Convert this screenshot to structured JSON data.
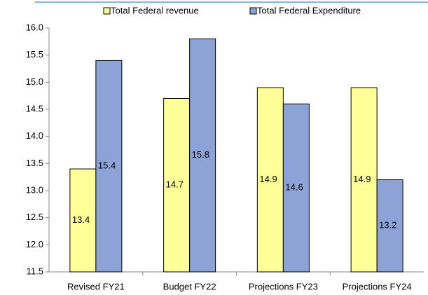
{
  "chart_data": {
    "type": "bar",
    "categories": [
      "Revised FY21",
      "Budget FY22",
      "Projections FY23",
      "Projections FY24"
    ],
    "series": [
      {
        "name": "Total Federal revenue",
        "color": "#ffff99",
        "values": [
          13.4,
          14.7,
          14.9,
          14.9
        ]
      },
      {
        "name": "Total Federal Expenditure",
        "color": "#8da2d6",
        "values": [
          15.4,
          15.8,
          14.6,
          13.2
        ]
      }
    ],
    "ylim": [
      11.5,
      16
    ],
    "yticks": [
      11.5,
      {
        "value": 12,
        "label": "12.0"
      },
      12.5,
      {
        "value": 13,
        "label": "13.0"
      },
      13.5,
      {
        "value": 14,
        "label": "14.0"
      },
      14.5,
      {
        "value": 15,
        "label": "15.0"
      },
      15.5,
      {
        "value": 16,
        "label": "16.0"
      }
    ],
    "grid": false
  }
}
